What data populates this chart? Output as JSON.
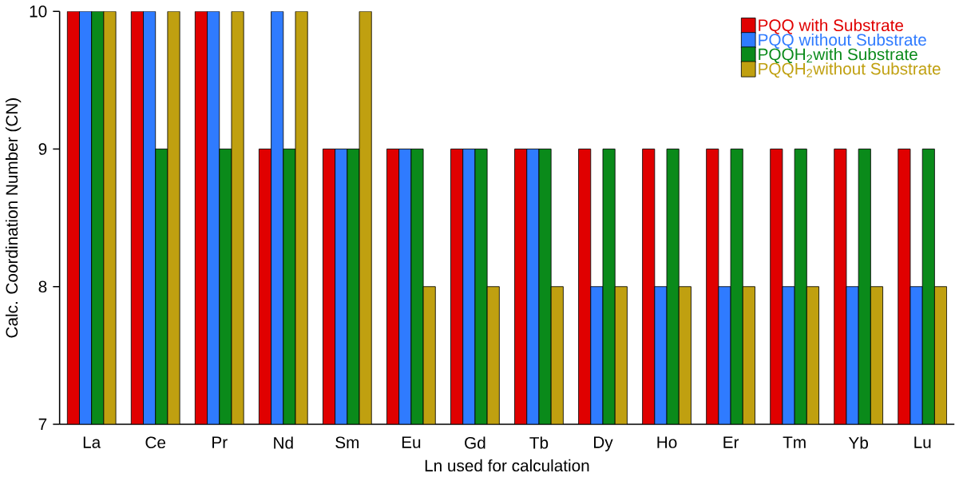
{
  "chart_data": {
    "type": "bar",
    "xlabel": "Ln used for calculation",
    "ylabel": "Calc. Coordination Number  (CN)",
    "categories": [
      "La",
      "Ce",
      "Pr",
      "Nd",
      "Sm",
      "Eu",
      "Gd",
      "Tb",
      "Dy",
      "Ho",
      "Er",
      "Tm",
      "Yb",
      "Lu"
    ],
    "series": [
      {
        "name": "PQQ with Substrate",
        "color": "#e00000",
        "values": [
          10,
          10,
          10,
          9,
          9,
          9,
          9,
          9,
          9,
          9,
          9,
          9,
          9,
          9
        ]
      },
      {
        "name": "PQQ without Substrate",
        "color": "#2f7bff",
        "values": [
          10,
          10,
          10,
          10,
          9,
          9,
          9,
          9,
          8,
          8,
          8,
          8,
          8,
          8
        ]
      },
      {
        "name": "PQQH$_{2}$with Substrate",
        "color": "#0a8a1a",
        "values": [
          10,
          9,
          9,
          9,
          9,
          9,
          9,
          9,
          9,
          9,
          9,
          9,
          9,
          9
        ]
      },
      {
        "name": "PQQH$_{2}$without Substrate",
        "color": "#c0a010",
        "values": [
          10,
          10,
          10,
          10,
          10,
          8,
          8,
          8,
          8,
          8,
          8,
          8,
          8,
          8
        ]
      }
    ],
    "ylim": [
      7,
      10
    ],
    "yticks": [
      7,
      8,
      9,
      10
    ],
    "grid": false,
    "legend": "top right"
  }
}
